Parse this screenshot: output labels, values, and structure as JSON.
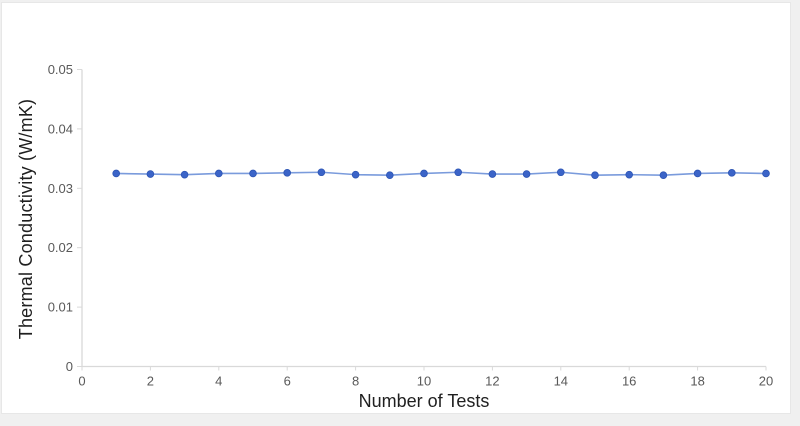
{
  "chart_data": {
    "type": "line",
    "title": "",
    "xlabel": "Number of Tests",
    "ylabel": "Thermal Conductivity (W/mK)",
    "x": [
      1,
      2,
      3,
      4,
      5,
      6,
      7,
      8,
      9,
      10,
      11,
      12,
      13,
      14,
      15,
      16,
      17,
      18,
      19,
      20
    ],
    "values": [
      0.0325,
      0.0324,
      0.0323,
      0.0325,
      0.0325,
      0.0326,
      0.0327,
      0.0323,
      0.0322,
      0.0325,
      0.0327,
      0.0324,
      0.0324,
      0.0327,
      0.0322,
      0.0323,
      0.0322,
      0.0325,
      0.0326,
      0.0325
    ],
    "series_name": "Thermal Conductivity",
    "xlim": [
      0,
      20
    ],
    "ylim": [
      0,
      0.05
    ],
    "xticks": [
      0,
      2,
      4,
      6,
      8,
      10,
      12,
      14,
      16,
      18,
      20
    ],
    "xtick_labels": [
      "0",
      "2",
      "4",
      "6",
      "8",
      "10",
      "12",
      "14",
      "16",
      "18",
      "20"
    ],
    "yticks": [
      0,
      0.01,
      0.02,
      0.03,
      0.04,
      0.05
    ],
    "ytick_labels": [
      "0",
      "0.01",
      "0.02",
      "0.03",
      "0.04",
      "0.05"
    ],
    "grid": false,
    "legend": false,
    "marker": "circle",
    "colors": {
      "line": "#7a9bdc",
      "marker_fill": "#3b64c8",
      "marker_edge": "#2d55b4",
      "axis": "#d9d9d9",
      "tick_label": "#595959",
      "axis_title": "#1f1f1f",
      "card_bg": "#ffffff",
      "page_bg": "#f0f0f0",
      "card_border": "#e7e7e7"
    }
  }
}
